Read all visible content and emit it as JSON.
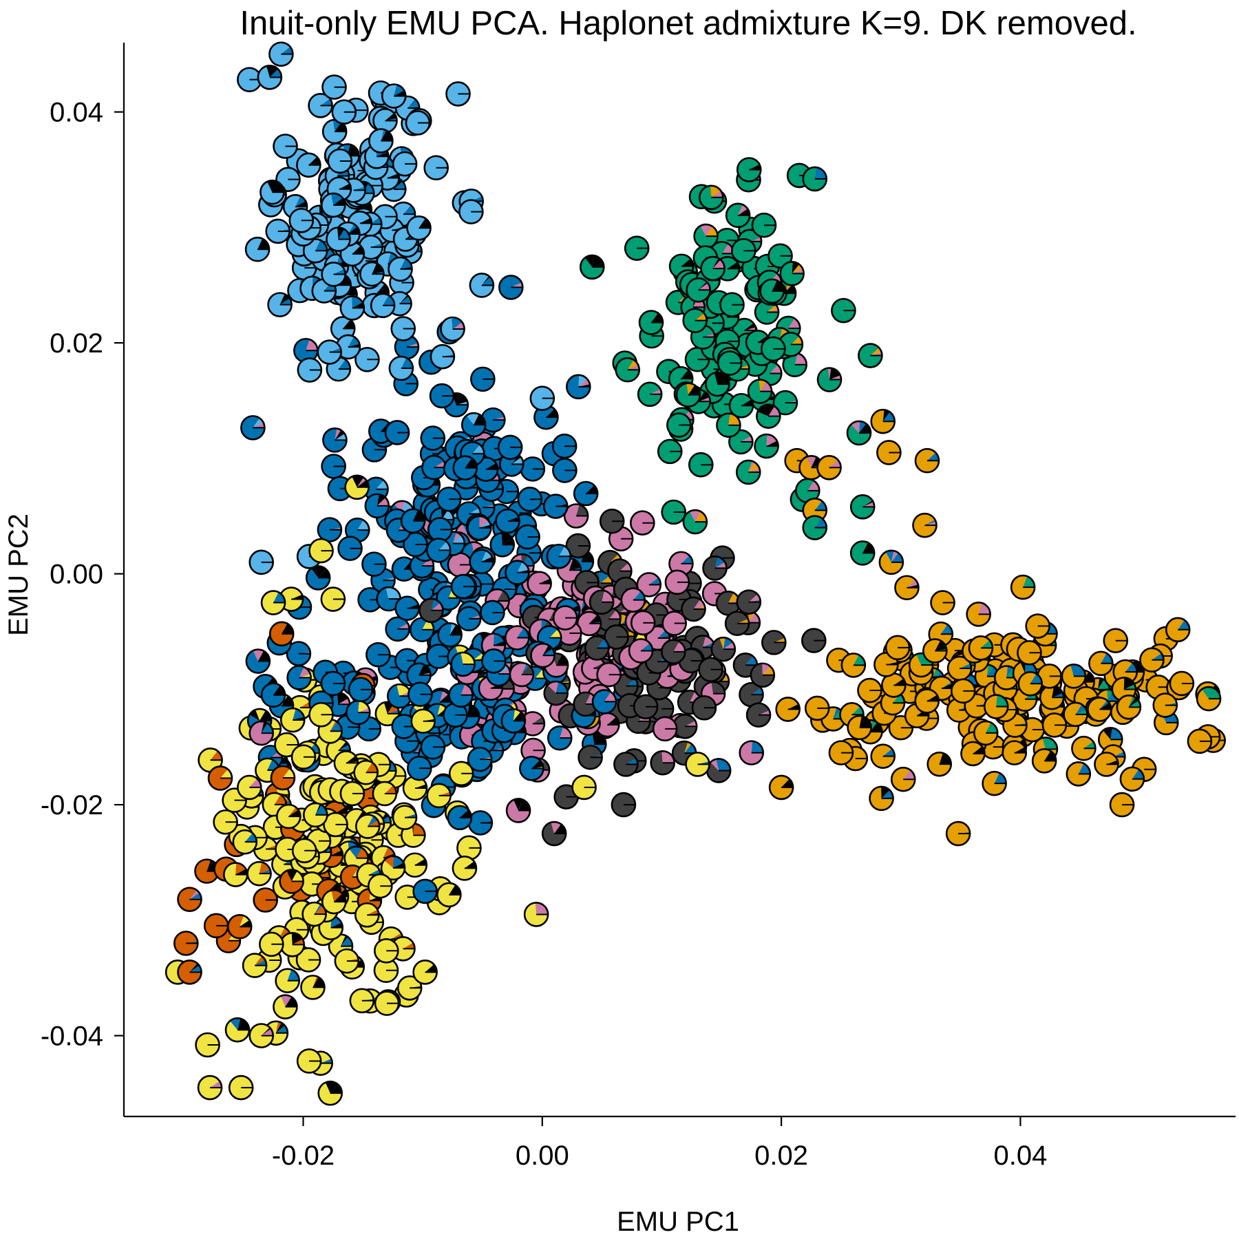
{
  "chart_data": {
    "type": "scatter",
    "title": "Inuit-only EMU PCA. Haplonet admixture K=9. DK removed.",
    "xlabel": "EMU PC1",
    "ylabel": "EMU PC2",
    "xlim": [
      -0.035,
      0.058
    ],
    "ylim": [
      -0.047,
      0.046
    ],
    "x_ticks": [
      -0.02,
      0.0,
      0.02,
      0.04
    ],
    "x_tick_labels": [
      "-0.02",
      "0.00",
      "0.02",
      "0.04"
    ],
    "y_ticks": [
      -0.04,
      -0.02,
      0.0,
      0.02,
      0.04
    ],
    "y_tick_labels": [
      "-0.04",
      "-0.02",
      "0.00",
      "0.02",
      "0.04"
    ],
    "grid": false,
    "legend": "none",
    "marker": "pie chart of admixture proportions",
    "component_colors": [
      "#56B4E9",
      "#0072B2",
      "#009E73",
      "#E69F00",
      "#F0E442",
      "#CC79A7",
      "#404040",
      "#D55E00",
      "#000000"
    ],
    "clusters": [
      {
        "color": "#56B4E9",
        "center": [
          -0.016,
          0.031
        ],
        "spread": [
          0.0038,
          0.0055
        ],
        "count": 140,
        "mix": [
          "#0072B2",
          "#000000"
        ]
      },
      {
        "color": "#0072B2",
        "center": [
          -0.0075,
          0.004
        ],
        "spread": [
          0.0048,
          0.0075
        ],
        "count": 150,
        "mix": [
          "#56B4E9",
          "#CC79A7",
          "#000000"
        ]
      },
      {
        "color": "#009E73",
        "center": [
          0.015,
          0.021
        ],
        "spread": [
          0.0038,
          0.0055
        ],
        "count": 110,
        "mix": [
          "#E69F00",
          "#000000",
          "#CC79A7"
        ]
      },
      {
        "color": "#E69F00",
        "center": [
          0.038,
          -0.01
        ],
        "spread": [
          0.0085,
          0.0028
        ],
        "count": 180,
        "mix": [
          "#0072B2",
          "#000000",
          "#009E73"
        ]
      },
      {
        "color": "#F0E442",
        "center": [
          -0.017,
          -0.024
        ],
        "spread": [
          0.0048,
          0.0065
        ],
        "count": 160,
        "mix": [
          "#0072B2",
          "#D55E00",
          "#000000"
        ]
      },
      {
        "color": "#CC79A7",
        "center": [
          0.0025,
          -0.006
        ],
        "spread": [
          0.0055,
          0.0042
        ],
        "count": 110,
        "mix": [
          "#0072B2",
          "#404040",
          "#000000"
        ]
      },
      {
        "color": "#404040",
        "center": [
          0.009,
          -0.007
        ],
        "spread": [
          0.0055,
          0.0042
        ],
        "count": 110,
        "mix": [
          "#CC79A7",
          "#E69F00",
          "#0072B2"
        ]
      },
      {
        "color": "#0072B2",
        "center": [
          -0.0065,
          -0.01
        ],
        "spread": [
          0.0065,
          0.0045
        ],
        "count": 110,
        "mix": [
          "#F0E442",
          "#CC79A7",
          "#000000"
        ]
      },
      {
        "color": "#D55E00",
        "center": [
          -0.021,
          -0.025
        ],
        "spread": [
          0.0045,
          0.0045
        ],
        "count": 25,
        "mix": [
          "#F0E442",
          "#000000"
        ]
      }
    ],
    "points": [
      {
        "x": -0.0245,
        "y": 0.0428,
        "c": "#56B4E9"
      },
      {
        "x": -0.0228,
        "y": 0.043,
        "c": "#56B4E9"
      },
      {
        "x": -0.0115,
        "y": 0.0355,
        "c": "#56B4E9"
      },
      {
        "x": -0.0135,
        "y": 0.0375,
        "c": "#56B4E9"
      },
      {
        "x": -0.0178,
        "y": 0.0192,
        "c": "#56B4E9"
      },
      {
        "x": -0.0075,
        "y": 0.0212,
        "c": "#56B4E9"
      },
      {
        "x": -0.0118,
        "y": 0.0178,
        "c": "#56B4E9"
      },
      {
        "x": 0.0,
        "y": 0.0152,
        "c": "#56B4E9"
      },
      {
        "x": -0.0235,
        "y": 0.001,
        "c": "#56B4E9"
      },
      {
        "x": -0.0155,
        "y": 0.0075,
        "c": "#F0E442"
      },
      {
        "x": -0.0195,
        "y": 0.0015,
        "c": "#56B4E9"
      },
      {
        "x": -0.0185,
        "y": 0.002,
        "c": "#F0E442"
      },
      {
        "x": -0.0175,
        "y": -0.0022,
        "c": "#F0E442"
      },
      {
        "x": -0.021,
        "y": -0.0022,
        "c": "#F0E442"
      },
      {
        "x": -0.0225,
        "y": -0.0025,
        "c": "#F0E442"
      },
      {
        "x": -0.0225,
        "y": -0.0105,
        "c": "#0072B2"
      },
      {
        "x": -0.0235,
        "y": -0.0138,
        "c": "#CC79A7"
      },
      {
        "x": -0.0218,
        "y": -0.0052,
        "c": "#D55E00"
      },
      {
        "x": 0.0173,
        "y": 0.035,
        "c": "#009E73"
      },
      {
        "x": 0.0215,
        "y": 0.0345,
        "c": "#009E73"
      },
      {
        "x": 0.0228,
        "y": 0.0342,
        "c": "#009E73"
      },
      {
        "x": 0.0252,
        "y": 0.0228,
        "c": "#009E73"
      },
      {
        "x": 0.0213,
        "y": 0.0098,
        "c": "#E69F00"
      },
      {
        "x": 0.0225,
        "y": 0.0092,
        "c": "#E69F00"
      },
      {
        "x": 0.024,
        "y": 0.0092,
        "c": "#E69F00"
      },
      {
        "x": 0.0222,
        "y": 0.0072,
        "c": "#009E73"
      },
      {
        "x": 0.0228,
        "y": 0.0055,
        "c": "#E69F00"
      },
      {
        "x": 0.0228,
        "y": 0.004,
        "c": "#009E73"
      },
      {
        "x": 0.0265,
        "y": 0.0122,
        "c": "#009E73"
      },
      {
        "x": 0.0285,
        "y": 0.0132,
        "c": "#E69F00"
      },
      {
        "x": 0.029,
        "y": 0.0105,
        "c": "#E69F00"
      },
      {
        "x": 0.0322,
        "y": 0.0098,
        "c": "#E69F00"
      },
      {
        "x": 0.0268,
        "y": 0.0058,
        "c": "#009E73"
      },
      {
        "x": 0.032,
        "y": 0.0042,
        "c": "#E69F00"
      },
      {
        "x": 0.0268,
        "y": 0.0018,
        "c": "#009E73"
      },
      {
        "x": 0.0292,
        "y": 0.001,
        "c": "#E69F00"
      },
      {
        "x": 0.0305,
        "y": -0.0012,
        "c": "#E69F00"
      },
      {
        "x": 0.0335,
        "y": -0.0025,
        "c": "#E69F00"
      },
      {
        "x": 0.0365,
        "y": -0.0035,
        "c": "#E69F00"
      },
      {
        "x": 0.055,
        "y": -0.0145,
        "c": "#E69F00"
      },
      {
        "x": 0.0535,
        "y": -0.0095,
        "c": "#E69F00"
      },
      {
        "x": 0.0485,
        "y": -0.02,
        "c": "#E69F00"
      },
      {
        "x": 0.0472,
        "y": -0.0165,
        "c": "#E69F00"
      },
      {
        "x": 0.042,
        "y": -0.0162,
        "c": "#E69F00"
      },
      {
        "x": 0.0395,
        "y": -0.0155,
        "c": "#E69F00"
      },
      {
        "x": 0.0302,
        "y": -0.0178,
        "c": "#E69F00"
      },
      {
        "x": 0.02,
        "y": -0.0185,
        "c": "#E69F00"
      },
      {
        "x": 0.0285,
        "y": -0.0158,
        "c": "#E69F00"
      },
      {
        "x": 0.0262,
        "y": -0.016,
        "c": "#E69F00"
      },
      {
        "x": 0.025,
        "y": -0.0155,
        "c": "#E69F00"
      },
      {
        "x": 0.0068,
        "y": -0.02,
        "c": "#404040"
      },
      {
        "x": 0.001,
        "y": -0.0225,
        "c": "#404040"
      },
      {
        "x": -0.0005,
        "y": -0.0295,
        "c": "#F0E442"
      },
      {
        "x": -0.0065,
        "y": -0.0255,
        "c": "#F0E442"
      },
      {
        "x": -0.0098,
        "y": -0.0275,
        "c": "#0072B2"
      },
      {
        "x": -0.0078,
        "y": -0.0278,
        "c": "#F0E442"
      },
      {
        "x": -0.0098,
        "y": -0.0345,
        "c": "#F0E442"
      },
      {
        "x": -0.013,
        "y": -0.0372,
        "c": "#F0E442"
      },
      {
        "x": -0.0235,
        "y": -0.04,
        "c": "#F0E442"
      },
      {
        "x": -0.0255,
        "y": -0.0395,
        "c": "#F0E442"
      },
      {
        "x": -0.0215,
        "y": -0.0375,
        "c": "#F0E442"
      },
      {
        "x": -0.0195,
        "y": -0.0422,
        "c": "#F0E442"
      },
      {
        "x": -0.028,
        "y": -0.0408,
        "c": "#F0E442"
      },
      {
        "x": -0.0278,
        "y": -0.0445,
        "c": "#F0E442"
      },
      {
        "x": -0.0252,
        "y": -0.0445,
        "c": "#F0E442"
      },
      {
        "x": -0.0305,
        "y": -0.0345,
        "c": "#F0E442"
      },
      {
        "x": -0.0295,
        "y": -0.0345,
        "c": "#D55E00"
      },
      {
        "x": -0.0298,
        "y": -0.032,
        "c": "#D55E00"
      },
      {
        "x": -0.0295,
        "y": -0.0282,
        "c": "#D55E00"
      },
      {
        "x": -0.0245,
        "y": -0.0185,
        "c": "#F0E442"
      },
      {
        "x": -0.0265,
        "y": -0.0215,
        "c": "#F0E442"
      },
      {
        "x": -0.0185,
        "y": -0.0112,
        "c": "#0072B2"
      },
      {
        "x": -0.0185,
        "y": -0.0122,
        "c": "#F0E442"
      },
      {
        "x": -0.0175,
        "y": -0.0095,
        "c": "#0072B2"
      },
      {
        "x": 0.013,
        "y": -0.0165,
        "c": "#F0E442"
      },
      {
        "x": 0.0175,
        "y": -0.0155,
        "c": "#CC79A7"
      },
      {
        "x": 0.007,
        "y": -0.0165,
        "c": "#404040"
      },
      {
        "x": 0.0035,
        "y": -0.0185,
        "c": "#F0E442"
      },
      {
        "x": -0.002,
        "y": -0.0205,
        "c": "#CC79A7"
      },
      {
        "x": 0.0348,
        "y": -0.0225,
        "c": "#E69F00"
      }
    ]
  }
}
